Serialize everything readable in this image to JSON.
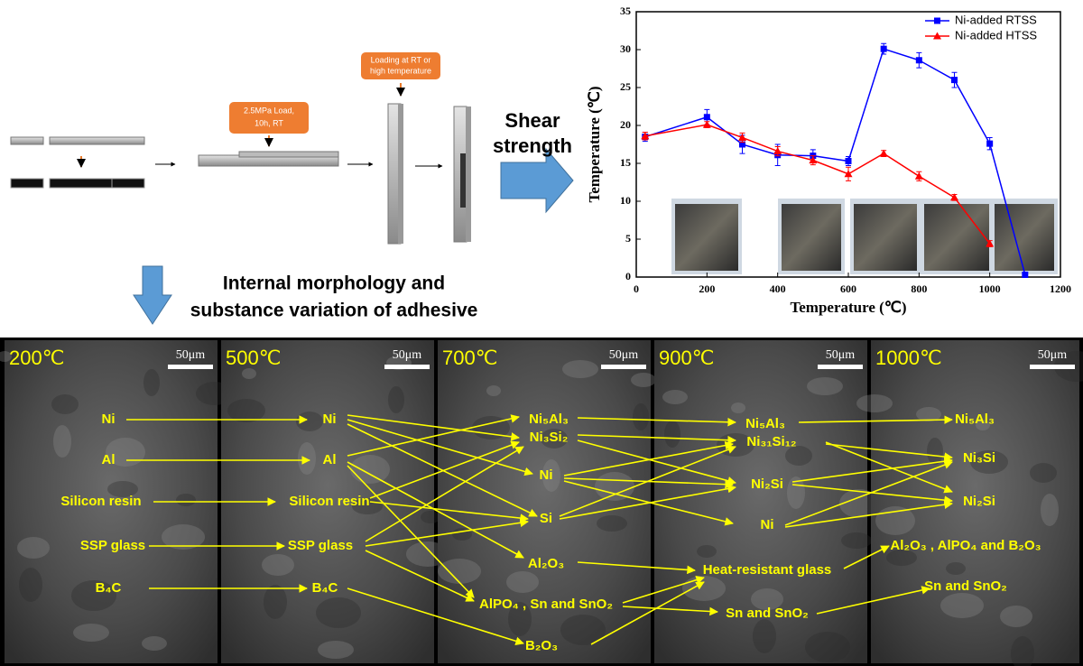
{
  "schematic": {
    "load_label": [
      "2.5MPa Load,",
      "10h, RT"
    ],
    "loading_label": [
      "Loading at RT or",
      "high temperature"
    ],
    "shear_label": [
      "Shear",
      "strength"
    ],
    "morphology_label": [
      "Internal morphology  and",
      "substance variation of adhesive"
    ]
  },
  "chart_data": {
    "type": "line",
    "xlabel": "Temperature (℃)",
    "ylabel": "Temperature (℃)",
    "xlim": [
      0,
      1200
    ],
    "xticks": [
      0,
      200,
      400,
      600,
      800,
      1000,
      1200
    ],
    "ylim": [
      0,
      35
    ],
    "yticks": [
      0,
      5,
      10,
      15,
      20,
      25,
      30,
      35
    ],
    "legend": "upper right",
    "series": [
      {
        "name": "Ni-added RTSS",
        "color": "#0000ff",
        "marker": "square",
        "x": [
          25,
          200,
          300,
          400,
          500,
          600,
          700,
          800,
          900,
          1000,
          1100
        ],
        "values": [
          18.5,
          21.1,
          17.5,
          16.1,
          16.0,
          15.3,
          30.1,
          28.6,
          26.0,
          17.6,
          0.3
        ],
        "errors": [
          0.6,
          1.0,
          1.2,
          1.4,
          0.8,
          0.6,
          0.7,
          1.0,
          1.0,
          0.8,
          0.2
        ]
      },
      {
        "name": "Ni-added HTSS",
        "color": "#ff0000",
        "marker": "triangle",
        "x": [
          25,
          200,
          300,
          400,
          500,
          600,
          700,
          800,
          900,
          1000
        ],
        "values": [
          18.6,
          20.1,
          18.4,
          16.6,
          15.4,
          13.6,
          16.3,
          13.3,
          10.5,
          4.4
        ],
        "errors": [
          0.5,
          0.4,
          0.6,
          0.6,
          0.6,
          0.9,
          0.4,
          0.6,
          0.4,
          0.4
        ]
      }
    ]
  },
  "sem": {
    "panels": [
      {
        "temperature": "200℃",
        "scale_bar": "50μm"
      },
      {
        "temperature": "500℃",
        "scale_bar": "50μm"
      },
      {
        "temperature": "700℃",
        "scale_bar": "50μm"
      },
      {
        "temperature": "900℃",
        "scale_bar": "50μm"
      },
      {
        "temperature": "1000℃",
        "scale_bar": "50μm"
      }
    ],
    "columns": [
      [
        "Ni",
        "Al",
        "Silicon resin",
        "SSP glass",
        "B₄C"
      ],
      [
        "Ni",
        "Al",
        "Silicon resin",
        "SSP glass",
        "B₄C"
      ],
      [
        "Ni₅Al₃",
        "Ni₃Si₂",
        "Ni",
        "Si",
        "Al₂O₃",
        "AlPO₄ , Sn and SnO₂",
        "B₂O₃"
      ],
      [
        "Ni₅Al₃",
        "Ni₃₁Si₁₂",
        "Ni₂Si",
        "Ni",
        "Heat-resistant glass",
        "Sn and SnO₂"
      ],
      [
        "Ni₅Al₃",
        "Ni₃Si",
        "Ni₂Si",
        "Al₂O₃ , AlPO₄ and B₂O₃",
        "Sn and SnO₂"
      ]
    ]
  }
}
